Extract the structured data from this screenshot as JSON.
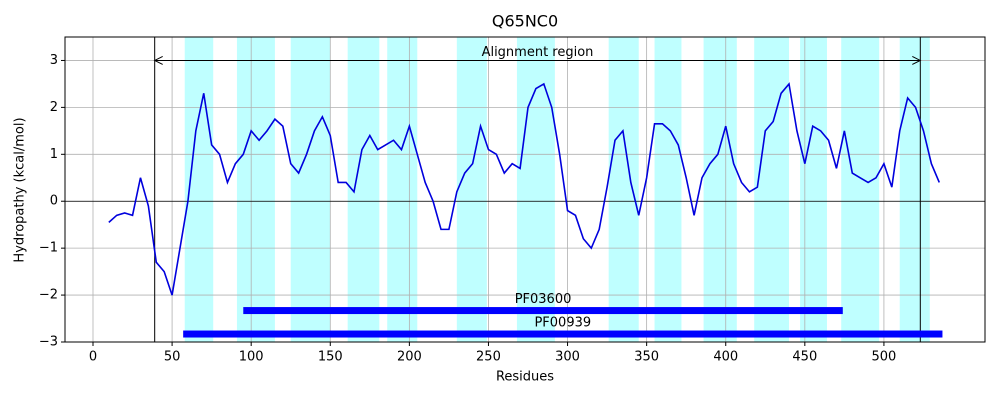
{
  "chart_data": {
    "type": "line",
    "title": "Q65NC0",
    "x_label": "Residues",
    "y_label": "Hydropathy (kcal/mol)",
    "x": [
      10,
      15,
      20,
      25,
      30,
      35,
      40,
      45,
      50,
      55,
      60,
      65,
      70,
      75,
      80,
      85,
      90,
      95,
      100,
      105,
      110,
      115,
      120,
      125,
      130,
      135,
      140,
      145,
      150,
      155,
      160,
      165,
      170,
      175,
      180,
      185,
      190,
      195,
      200,
      205,
      210,
      215,
      220,
      225,
      230,
      235,
      240,
      245,
      250,
      255,
      260,
      265,
      270,
      275,
      280,
      285,
      290,
      295,
      300,
      305,
      310,
      315,
      320,
      325,
      330,
      335,
      340,
      345,
      350,
      355,
      360,
      365,
      370,
      375,
      380,
      385,
      390,
      395,
      400,
      405,
      410,
      415,
      420,
      425,
      430,
      435,
      440,
      445,
      450,
      455,
      460,
      465,
      470,
      475,
      480,
      485,
      490,
      495,
      500,
      505,
      510,
      515,
      520,
      525,
      530,
      535
    ],
    "series": [
      {
        "name": "Hydropathy",
        "color": "#0000dd",
        "values": [
          -0.45,
          -0.3,
          -0.25,
          -0.3,
          0.5,
          -0.1,
          -1.3,
          -1.5,
          -2.0,
          -1.0,
          0.0,
          1.5,
          2.3,
          1.2,
          1.0,
          0.4,
          0.8,
          1.0,
          1.5,
          1.3,
          1.5,
          1.75,
          1.6,
          0.8,
          0.6,
          1.0,
          1.5,
          1.8,
          1.4,
          0.4,
          0.4,
          0.2,
          1.1,
          1.4,
          1.1,
          1.2,
          1.3,
          1.1,
          1.6,
          1.0,
          0.4,
          0.0,
          -0.6,
          -0.6,
          0.2,
          0.6,
          0.8,
          1.6,
          1.1,
          1.0,
          0.6,
          0.8,
          0.7,
          2.0,
          2.4,
          2.5,
          2.0,
          1.0,
          -0.2,
          -0.3,
          -0.8,
          -1.0,
          -0.6,
          0.3,
          1.3,
          1.5,
          0.4,
          -0.3,
          0.5,
          1.65,
          1.65,
          1.5,
          1.2,
          0.5,
          -0.3,
          0.5,
          0.8,
          1.0,
          1.6,
          0.8,
          0.4,
          0.2,
          0.3,
          1.5,
          1.7,
          2.3,
          2.5,
          1.5,
          0.8,
          1.6,
          1.5,
          1.3,
          0.7,
          1.5,
          0.6,
          0.5,
          0.4,
          0.5,
          0.8,
          0.3,
          1.5,
          2.2,
          2.0,
          1.5,
          0.8,
          0.4
        ]
      }
    ],
    "shaded_regions": {
      "color": "#bfffff",
      "spans": [
        [
          58,
          76
        ],
        [
          91,
          115
        ],
        [
          125,
          150
        ],
        [
          161,
          181
        ],
        [
          186,
          205
        ],
        [
          230,
          249
        ],
        [
          268,
          292
        ],
        [
          326,
          345
        ],
        [
          355,
          372
        ],
        [
          386,
          407
        ],
        [
          418,
          440
        ],
        [
          447,
          464
        ],
        [
          473,
          497
        ],
        [
          510,
          529
        ]
      ]
    },
    "alignment": {
      "label": "Alignment region",
      "start": 39,
      "end": 523,
      "y": 3
    },
    "domains": [
      {
        "name": "PF03600",
        "start": 95,
        "end": 474,
        "y": -2.33,
        "color": "#0000ff"
      },
      {
        "name": "PF00939",
        "start": 57,
        "end": 537,
        "y": -2.83,
        "color": "#0000ff"
      }
    ],
    "hline": 0,
    "xlim": [
      -17.7,
      563.9
    ],
    "ylim": [
      -3,
      3.5
    ],
    "xticks": [
      0,
      50,
      100,
      150,
      200,
      250,
      300,
      350,
      400,
      450,
      500
    ],
    "yticks": [
      {
        "value": -3,
        "label": "−3"
      },
      {
        "value": -2,
        "label": "−2"
      },
      {
        "value": -1,
        "label": "−1"
      },
      0,
      1,
      2,
      3
    ],
    "grid": true
  }
}
